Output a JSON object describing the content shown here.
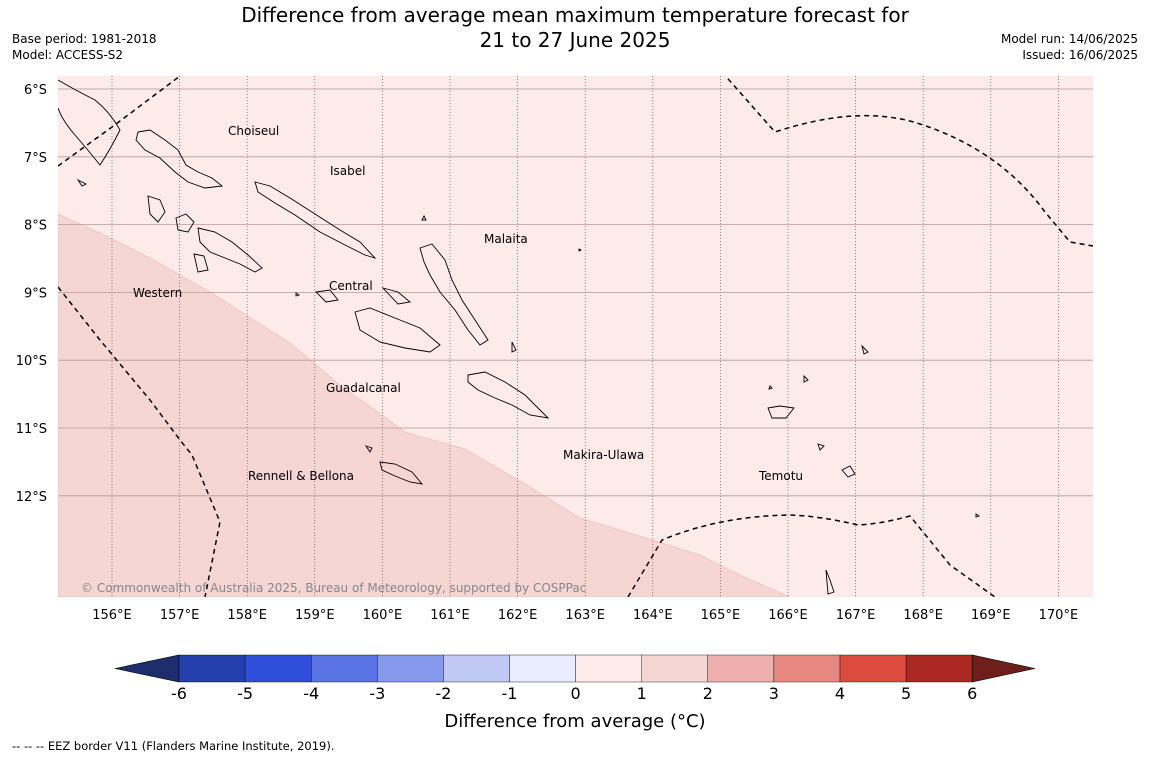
{
  "header": {
    "title_line1": "Difference from average mean maximum temperature forecast for",
    "title_line2": "21 to 27 June 2025",
    "base_period": "Base period: 1981-2018",
    "model": "Model: ACCESS-S2",
    "model_run": "Model run: 14/06/2025",
    "issued": "Issued: 16/06/2025"
  },
  "map": {
    "lat_labels": [
      "6°S",
      "7°S",
      "8°S",
      "9°S",
      "10°S",
      "11°S",
      "12°S"
    ],
    "lon_labels": [
      "156°E",
      "157°E",
      "158°E",
      "159°E",
      "160°E",
      "161°E",
      "162°E",
      "163°E",
      "164°E",
      "165°E",
      "166°E",
      "167°E",
      "168°E",
      "169°E",
      "170°E"
    ],
    "regions": [
      "Choiseul",
      "Isabel",
      "Malaita",
      "Western",
      "Central",
      "Guadalcanal",
      "Makira-Ulawa",
      "Rennell & Bellona",
      "Temotu"
    ],
    "copyright": "© Commonwealth of Australia 2025, Bureau of Meteorology, supported by COSPPac",
    "fill_colors": {
      "range_0_1": "#fcebe9",
      "range_1_2": "#f6d6d3"
    }
  },
  "colorbar": {
    "ticks": [
      "-6",
      "-5",
      "-4",
      "-3",
      "-2",
      "-1",
      "0",
      "1",
      "2",
      "3",
      "4",
      "5",
      "6"
    ],
    "colors": [
      "#1d2d6e",
      "#2440ac",
      "#2f4fdb",
      "#5a73e4",
      "#8598ec",
      "#c0c8f4",
      "#e9ecfd",
      "#fdeceb",
      "#f6d6d3",
      "#eeb0ac",
      "#e78980",
      "#dd4b3e",
      "#ac2923",
      "#6e1e1b"
    ],
    "label": "Difference from average (°C)"
  },
  "footnote": "--  --  -- EEZ border V11 (Flanders Marine Institute, 2019)."
}
